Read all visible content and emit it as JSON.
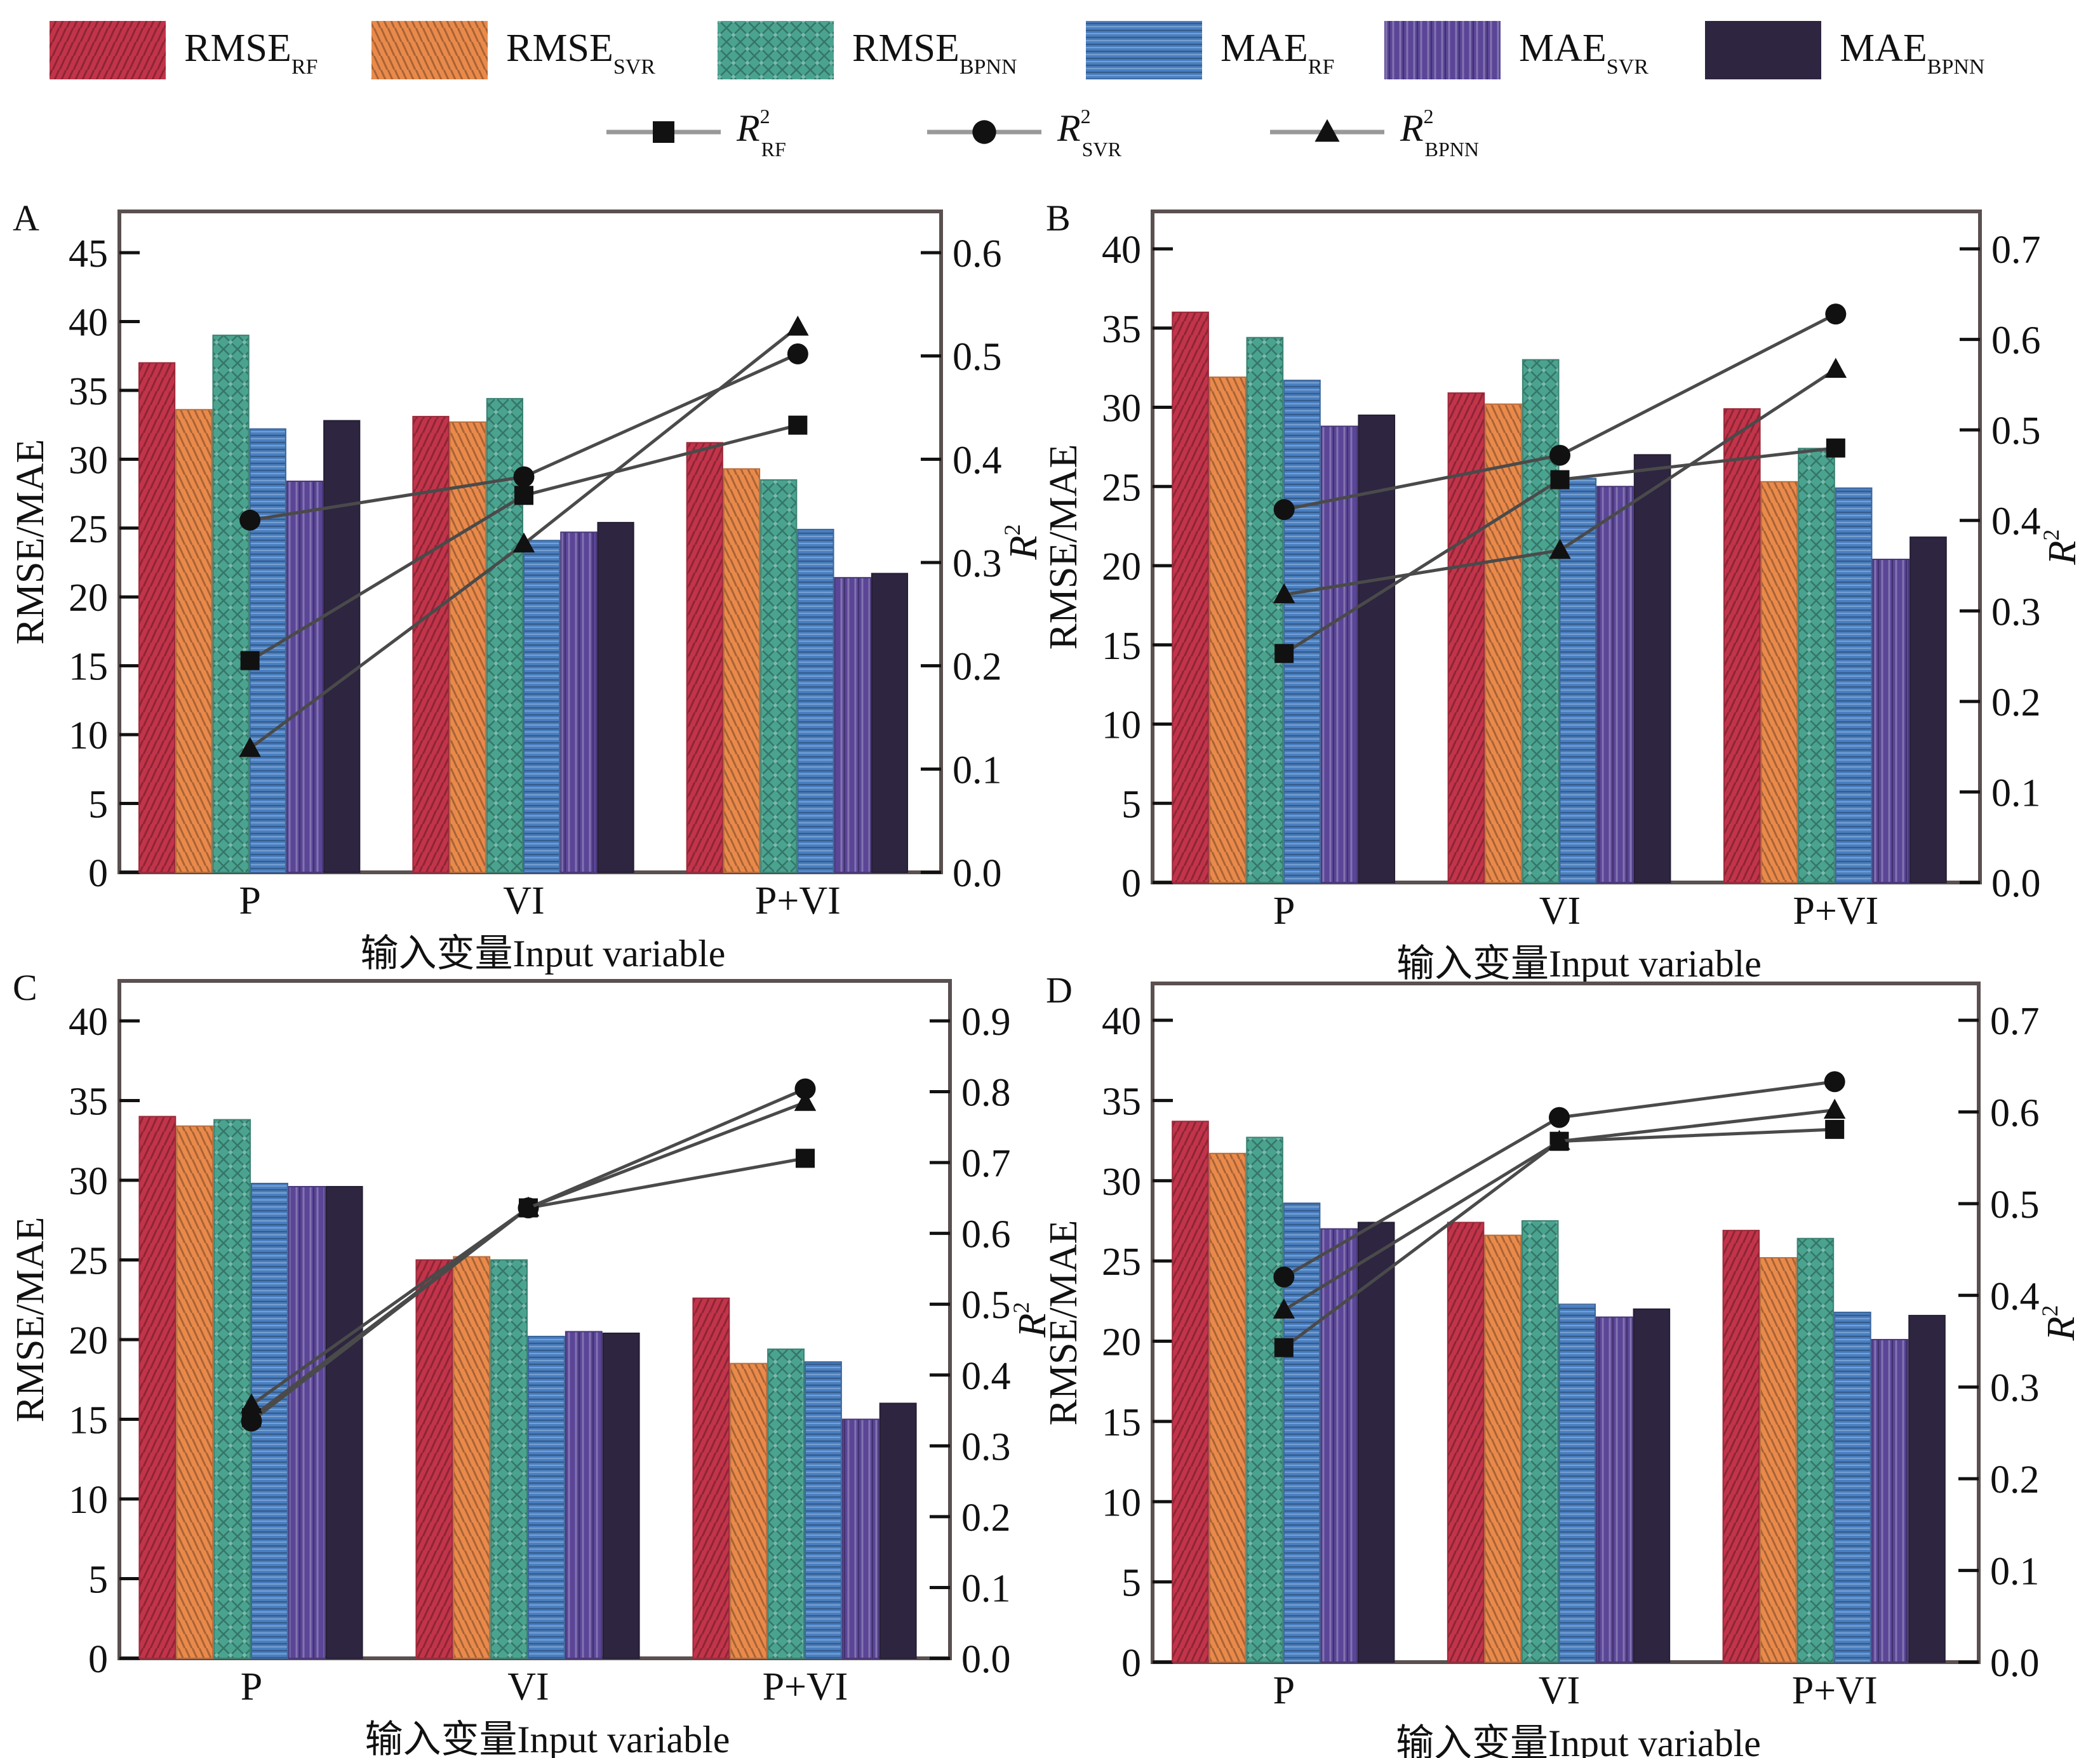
{
  "legend": {
    "bars": [
      {
        "key": "rmse_rf",
        "label": "RMSE",
        "sub": "RF",
        "color": "#c2344a",
        "pattern": "diag-right"
      },
      {
        "key": "rmse_svr",
        "label": "RMSE",
        "sub": "SVR",
        "color": "#e98a4b",
        "pattern": "diag-left"
      },
      {
        "key": "rmse_bpnn",
        "label": "RMSE",
        "sub": "BPNN",
        "color": "#4aa38f",
        "pattern": "crosshatch"
      },
      {
        "key": "mae_rf",
        "label": "MAE",
        "sub": "RF",
        "color": "#4a80c2",
        "pattern": "horizontal"
      },
      {
        "key": "mae_svr",
        "label": "MAE",
        "sub": "SVR",
        "color": "#5a4597",
        "pattern": "vertical"
      },
      {
        "key": "mae_bpnn",
        "label": "MAE",
        "sub": "BPNN",
        "color": "#2e2541",
        "pattern": "solid"
      }
    ],
    "lines": [
      {
        "key": "r2_rf",
        "label": "R",
        "sup": "2",
        "sub": "RF",
        "marker": "square"
      },
      {
        "key": "r2_svr",
        "label": "R",
        "sup": "2",
        "sub": "SVR",
        "marker": "circle"
      },
      {
        "key": "r2_bpnn",
        "label": "R",
        "sup": "2",
        "sub": "BPNN",
        "marker": "triangle"
      }
    ]
  },
  "chart_data": [
    {
      "panel": "A",
      "type": "bar",
      "categories": [
        "P",
        "VI",
        "P+VI"
      ],
      "xlabel": "输入变量Input variable",
      "ylabel": "RMSE/MAE",
      "y2label": "R2",
      "ylim": [
        0,
        47
      ],
      "yticks": [
        0,
        5,
        10,
        15,
        20,
        25,
        30,
        35,
        40,
        45
      ],
      "y2lim": [
        0,
        0.627
      ],
      "y2ticks": [
        "0.0",
        "0.1",
        "0.2",
        "0.3",
        "0.4",
        "0.5",
        "0.6"
      ],
      "series": [
        {
          "name": "RMSE_RF",
          "values": [
            37.0,
            33.1,
            31.2
          ]
        },
        {
          "name": "RMSE_SVR",
          "values": [
            33.6,
            32.7,
            29.3
          ]
        },
        {
          "name": "RMSE_BPNN",
          "values": [
            39.0,
            34.4,
            28.5
          ]
        },
        {
          "name": "MAE_RF",
          "values": [
            32.2,
            24.1,
            24.9
          ]
        },
        {
          "name": "MAE_SVR",
          "values": [
            28.4,
            24.7,
            21.4
          ]
        },
        {
          "name": "MAE_BPNN",
          "values": [
            32.8,
            25.4,
            21.7
          ]
        }
      ],
      "lines": [
        {
          "name": "R2_RF",
          "values": [
            0.205,
            0.365,
            0.433
          ]
        },
        {
          "name": "R2_SVR",
          "values": [
            0.341,
            0.383,
            0.502
          ]
        },
        {
          "name": "R2_BPNN",
          "values": [
            0.12,
            0.318,
            0.528
          ]
        }
      ]
    },
    {
      "panel": "B",
      "type": "bar",
      "categories": [
        "P",
        "VI",
        "P+VI"
      ],
      "xlabel": "输入变量Input variable",
      "ylabel": "RMSE/MAE",
      "y2label": "R2",
      "ylim": [
        0,
        43
      ],
      "yticks": [
        0,
        5,
        10,
        15,
        20,
        25,
        30,
        35,
        40
      ],
      "y2lim": [
        0,
        0.7525
      ],
      "y2ticks": [
        "0.0",
        "0.1",
        "0.2",
        "0.3",
        "0.4",
        "0.5",
        "0.6",
        "0.7"
      ],
      "series": [
        {
          "name": "RMSE_RF",
          "values": [
            36.0,
            30.9,
            29.9
          ]
        },
        {
          "name": "RMSE_SVR",
          "values": [
            31.9,
            30.2,
            25.3
          ]
        },
        {
          "name": "RMSE_BPNN",
          "values": [
            34.4,
            33.0,
            27.4
          ]
        },
        {
          "name": "MAE_RF",
          "values": [
            31.7,
            25.5,
            24.9
          ]
        },
        {
          "name": "MAE_SVR",
          "values": [
            28.8,
            25.0,
            20.4
          ]
        },
        {
          "name": "MAE_BPNN",
          "values": [
            29.5,
            27.0,
            21.8
          ]
        }
      ],
      "lines": [
        {
          "name": "R2_RF",
          "values": [
            0.253,
            0.445,
            0.48
          ]
        },
        {
          "name": "R2_SVR",
          "values": [
            0.412,
            0.472,
            0.628
          ]
        },
        {
          "name": "R2_BPNN",
          "values": [
            0.318,
            0.367,
            0.567
          ]
        }
      ]
    },
    {
      "panel": "C",
      "type": "bar",
      "categories": [
        "P",
        "VI",
        "P+VI"
      ],
      "xlabel": "输入变量Input variable",
      "ylabel": "RMSE/MAE",
      "y2label": "R2",
      "ylim": [
        0,
        42
      ],
      "yticks": [
        0,
        5,
        10,
        15,
        20,
        25,
        30,
        35,
        40
      ],
      "y2lim": [
        0,
        0.945
      ],
      "y2ticks": [
        "0.0",
        "0.1",
        "0.2",
        "0.3",
        "0.4",
        "0.5",
        "0.6",
        "0.7",
        "0.8",
        "0.9"
      ],
      "series": [
        {
          "name": "RMSE_RF",
          "values": [
            34.0,
            25.0,
            22.6
          ]
        },
        {
          "name": "RMSE_SVR",
          "values": [
            33.4,
            25.2,
            18.5
          ]
        },
        {
          "name": "RMSE_BPNN",
          "values": [
            33.8,
            25.0,
            19.4
          ]
        },
        {
          "name": "MAE_RF",
          "values": [
            29.8,
            20.2,
            18.6
          ]
        },
        {
          "name": "MAE_SVR",
          "values": [
            29.6,
            20.5,
            15.0
          ]
        },
        {
          "name": "MAE_BPNN",
          "values": [
            29.6,
            20.4,
            16.0
          ]
        }
      ],
      "lines": [
        {
          "name": "R2_RF",
          "values": [
            0.34,
            0.636,
            0.706
          ]
        },
        {
          "name": "R2_SVR",
          "values": [
            0.335,
            0.636,
            0.804
          ]
        },
        {
          "name": "R2_BPNN",
          "values": [
            0.358,
            0.636,
            0.785
          ]
        }
      ]
    },
    {
      "panel": "D",
      "type": "bar",
      "categories": [
        "P",
        "VI",
        "P+VI"
      ],
      "xlabel": "输入变量Input variable",
      "ylabel": "RMSE/MAE",
      "y2label": "R2",
      "ylim": [
        0,
        42
      ],
      "yticks": [
        0,
        5,
        10,
        15,
        20,
        25,
        30,
        35,
        40
      ],
      "y2lim": [
        0,
        0.735
      ],
      "y2ticks": [
        "0.0",
        "0.1",
        "0.2",
        "0.3",
        "0.4",
        "0.5",
        "0.6",
        "0.7"
      ],
      "series": [
        {
          "name": "RMSE_RF",
          "values": [
            33.7,
            27.4,
            26.9
          ]
        },
        {
          "name": "RMSE_SVR",
          "values": [
            31.7,
            26.6,
            25.2
          ]
        },
        {
          "name": "RMSE_BPNN",
          "values": [
            32.7,
            27.5,
            26.4
          ]
        },
        {
          "name": "MAE_RF",
          "values": [
            28.6,
            22.3,
            21.8
          ]
        },
        {
          "name": "MAE_SVR",
          "values": [
            27.0,
            21.5,
            20.1
          ]
        },
        {
          "name": "MAE_BPNN",
          "values": [
            27.4,
            22.0,
            21.6
          ]
        }
      ],
      "lines": [
        {
          "name": "R2_RF",
          "values": [
            0.343,
            0.568,
            0.581
          ]
        },
        {
          "name": "R2_SVR",
          "values": [
            0.42,
            0.594,
            0.633
          ]
        },
        {
          "name": "R2_BPNN",
          "values": [
            0.384,
            0.568,
            0.602
          ]
        }
      ]
    }
  ]
}
